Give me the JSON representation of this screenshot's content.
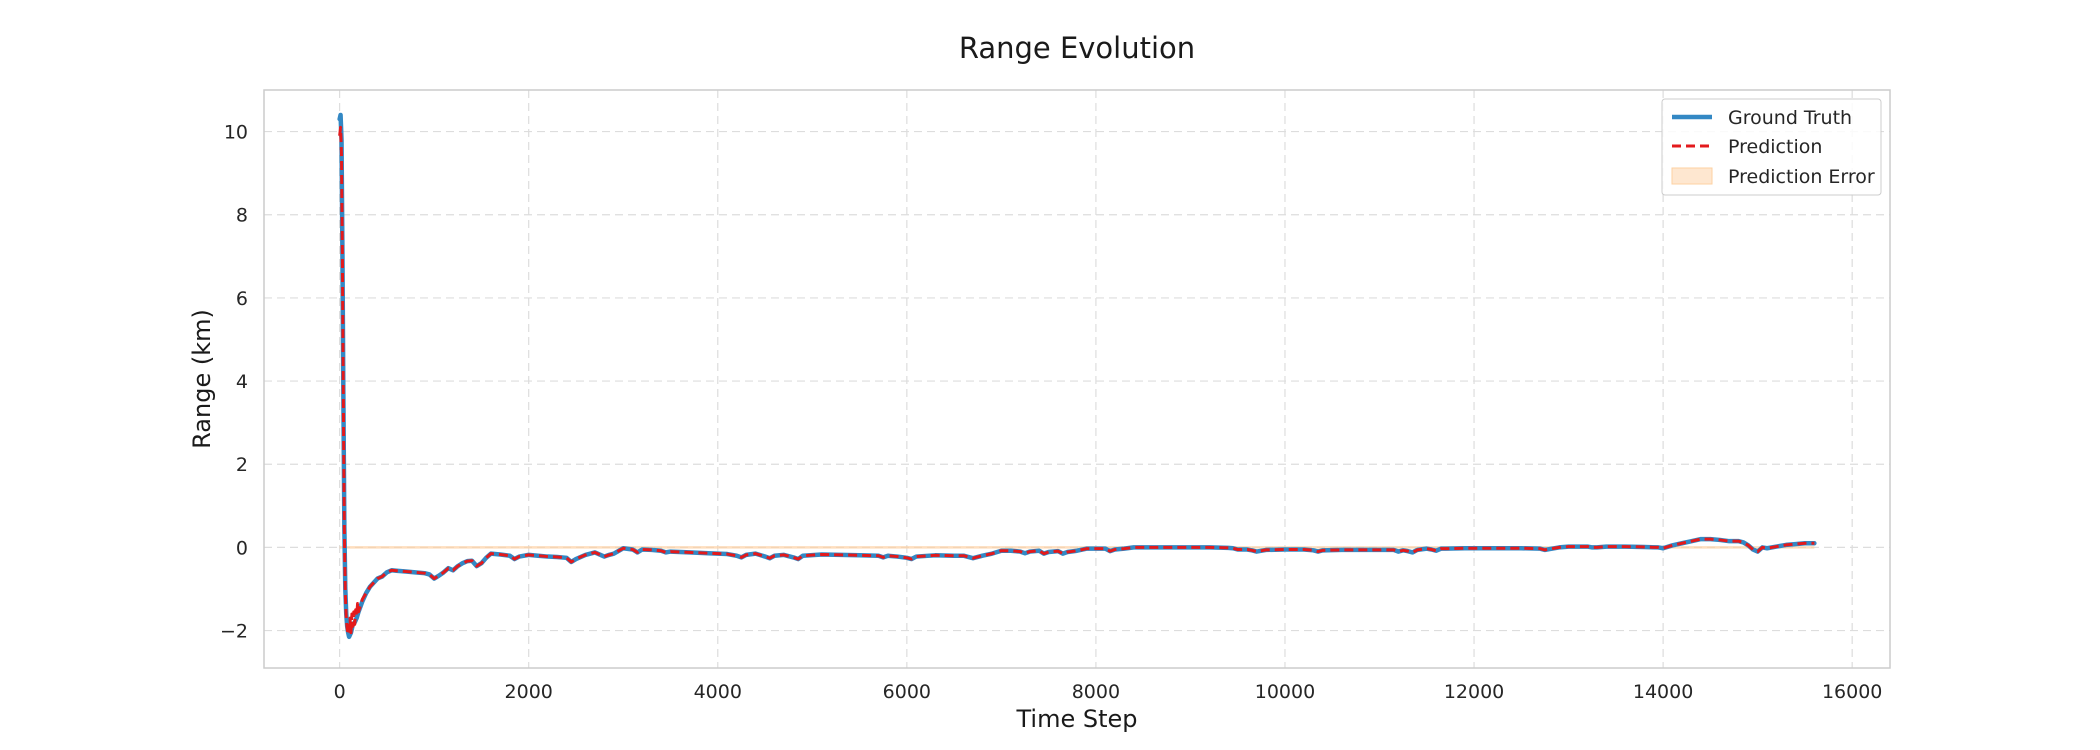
{
  "chart_data": {
    "type": "line",
    "title": "Range Evolution",
    "xlabel": "Time Step",
    "ylabel": "Range (km)",
    "xlim": [
      -800,
      16400
    ],
    "ylim": [
      -2.9,
      11.0
    ],
    "xticks": [
      0,
      2000,
      4000,
      6000,
      8000,
      10000,
      12000,
      14000,
      16000
    ],
    "xtick_labels": [
      "0",
      "2000",
      "4000",
      "6000",
      "8000",
      "10000",
      "12000",
      "14000",
      "16000"
    ],
    "yticks": [
      -2,
      0,
      2,
      4,
      6,
      8,
      10
    ],
    "ytick_labels": [
      "−2",
      "0",
      "2",
      "4",
      "6",
      "8",
      "10"
    ],
    "grid": true,
    "legend_position": "top-right",
    "series": [
      {
        "name": "Ground Truth",
        "style": "solid",
        "color": "#3388c4",
        "x": [
          0,
          10,
          20,
          30,
          40,
          50,
          60,
          70,
          80,
          90,
          100,
          120,
          140,
          160,
          180,
          200,
          240,
          280,
          320,
          360,
          400,
          450,
          500,
          550,
          600,
          700,
          800,
          900,
          950,
          1000,
          1050,
          1100,
          1150,
          1200,
          1250,
          1300,
          1350,
          1400,
          1450,
          1500,
          1550,
          1600,
          1700,
          1800,
          1850,
          1900,
          2000,
          2100,
          2200,
          2300,
          2400,
          2450,
          2500,
          2600,
          2700,
          2800,
          2850,
          2900,
          3000,
          3100,
          3150,
          3200,
          3300,
          3400,
          3450,
          3500,
          3700,
          3900,
          4100,
          4200,
          4250,
          4300,
          4400,
          4500,
          4550,
          4600,
          4700,
          4800,
          4850,
          4900,
          5100,
          5300,
          5500,
          5700,
          5750,
          5800,
          5900,
          6000,
          6050,
          6100,
          6300,
          6500,
          6600,
          6650,
          6700,
          6800,
          6900,
          7000,
          7100,
          7200,
          7250,
          7300,
          7400,
          7450,
          7500,
          7600,
          7650,
          7700,
          7800,
          7900,
          8000,
          8100,
          8150,
          8200,
          8300,
          8400,
          8600,
          8800,
          9000,
          9200,
          9400,
          9450,
          9500,
          9600,
          9650,
          9700,
          9800,
          10000,
          10200,
          10300,
          10350,
          10400,
          10600,
          10800,
          11000,
          11150,
          11200,
          11250,
          11300,
          11350,
          11400,
          11500,
          11550,
          11600,
          11650,
          11700,
          11900,
          12100,
          12300,
          12500,
          12700,
          12750,
          12800,
          12900,
          13000,
          13100,
          13200,
          13250,
          13300,
          13400,
          13600,
          13800,
          13950,
          14000,
          14100,
          14200,
          14300,
          14400,
          14500,
          14600,
          14700,
          14800,
          14850,
          14900,
          14950,
          15000,
          15050,
          15100,
          15200,
          15300,
          15400,
          15500,
          15600
        ],
        "y": [
          10.3,
          10.4,
          9.8,
          7.0,
          3.5,
          0.5,
          -1.0,
          -1.6,
          -1.9,
          -2.05,
          -2.15,
          -2.05,
          -1.85,
          -1.8,
          -1.7,
          -1.55,
          -1.3,
          -1.1,
          -0.95,
          -0.85,
          -0.75,
          -0.7,
          -0.6,
          -0.55,
          -0.56,
          -0.58,
          -0.6,
          -0.62,
          -0.65,
          -0.75,
          -0.68,
          -0.6,
          -0.5,
          -0.55,
          -0.45,
          -0.38,
          -0.33,
          -0.32,
          -0.45,
          -0.38,
          -0.25,
          -0.15,
          -0.17,
          -0.2,
          -0.28,
          -0.22,
          -0.18,
          -0.2,
          -0.22,
          -0.23,
          -0.25,
          -0.35,
          -0.28,
          -0.18,
          -0.12,
          -0.22,
          -0.18,
          -0.15,
          -0.02,
          -0.05,
          -0.12,
          -0.05,
          -0.06,
          -0.08,
          -0.12,
          -0.1,
          -0.12,
          -0.14,
          -0.16,
          -0.2,
          -0.24,
          -0.18,
          -0.15,
          -0.22,
          -0.26,
          -0.2,
          -0.18,
          -0.24,
          -0.28,
          -0.2,
          -0.17,
          -0.18,
          -0.19,
          -0.2,
          -0.24,
          -0.2,
          -0.22,
          -0.25,
          -0.28,
          -0.22,
          -0.19,
          -0.2,
          -0.2,
          -0.23,
          -0.26,
          -0.2,
          -0.15,
          -0.08,
          -0.08,
          -0.1,
          -0.14,
          -0.1,
          -0.08,
          -0.15,
          -0.11,
          -0.09,
          -0.15,
          -0.11,
          -0.08,
          -0.03,
          -0.03,
          -0.03,
          -0.09,
          -0.05,
          -0.03,
          0.0,
          0.0,
          0.0,
          0.0,
          0.0,
          -0.01,
          -0.02,
          -0.05,
          -0.05,
          -0.07,
          -0.1,
          -0.06,
          -0.05,
          -0.05,
          -0.07,
          -0.1,
          -0.07,
          -0.06,
          -0.06,
          -0.06,
          -0.06,
          -0.1,
          -0.07,
          -0.09,
          -0.12,
          -0.06,
          -0.03,
          -0.05,
          -0.08,
          -0.03,
          -0.03,
          -0.02,
          -0.02,
          -0.02,
          -0.02,
          -0.03,
          -0.06,
          -0.04,
          0.0,
          0.02,
          0.02,
          0.02,
          0.0,
          0.0,
          0.02,
          0.02,
          0.01,
          0.0,
          -0.02,
          0.05,
          0.1,
          0.15,
          0.2,
          0.2,
          0.18,
          0.15,
          0.15,
          0.12,
          0.05,
          -0.05,
          -0.1,
          0.0,
          -0.02,
          0.02,
          0.06,
          0.08,
          0.1,
          0.1
        ]
      },
      {
        "name": "Prediction",
        "style": "dashed",
        "color": "#e31a1c",
        "x": [
          0,
          10,
          20,
          30,
          40,
          50,
          60,
          70,
          80,
          90,
          100,
          110,
          120,
          130,
          140,
          150,
          160,
          170,
          180,
          190,
          200,
          240,
          280,
          320,
          360,
          400,
          450,
          500,
          550,
          600,
          700,
          800,
          900,
          950,
          1000,
          1050,
          1100,
          1150,
          1200,
          1250,
          1300,
          1350,
          1400,
          1450,
          1500,
          1550,
          1600,
          1700,
          1800,
          1850,
          1900,
          2000,
          2100,
          2200,
          2300,
          2400,
          2450,
          2500,
          2600,
          2700,
          2800,
          2850,
          2900,
          3000,
          3100,
          3150,
          3200,
          3300,
          3400,
          3450,
          3500,
          3700,
          3900,
          4100,
          4200,
          4250,
          4300,
          4400,
          4500,
          4550,
          4600,
          4700,
          4800,
          4850,
          4900,
          5100,
          5300,
          5500,
          5700,
          5750,
          5800,
          5900,
          6000,
          6050,
          6100,
          6300,
          6500,
          6600,
          6650,
          6700,
          6800,
          6900,
          7000,
          7100,
          7200,
          7250,
          7300,
          7400,
          7450,
          7500,
          7600,
          7650,
          7700,
          7800,
          7900,
          8000,
          8100,
          8150,
          8200,
          8300,
          8400,
          8600,
          8800,
          9000,
          9200,
          9400,
          9450,
          9500,
          9600,
          9650,
          9700,
          9800,
          10000,
          10200,
          10300,
          10350,
          10400,
          10600,
          10800,
          11000,
          11150,
          11200,
          11250,
          11300,
          11350,
          11400,
          11500,
          11550,
          11600,
          11650,
          11700,
          11900,
          12100,
          12300,
          12500,
          12700,
          12750,
          12800,
          12900,
          13000,
          13100,
          13200,
          13250,
          13300,
          13400,
          13600,
          13800,
          13950,
          14000,
          14100,
          14200,
          14300,
          14400,
          14500,
          14600,
          14700,
          14800,
          14850,
          14900,
          14950,
          15000,
          15050,
          15100,
          15200,
          15300,
          15400,
          15500,
          15600
        ],
        "y": [
          9.9,
          10.1,
          9.4,
          6.8,
          3.3,
          0.4,
          -1.1,
          -1.7,
          -1.95,
          -2.1,
          -2.0,
          -1.7,
          -2.05,
          -1.6,
          -1.9,
          -1.55,
          -1.85,
          -1.5,
          -1.65,
          -1.35,
          -1.55,
          -1.25,
          -1.1,
          -0.95,
          -0.85,
          -0.75,
          -0.7,
          -0.6,
          -0.55,
          -0.56,
          -0.58,
          -0.6,
          -0.62,
          -0.65,
          -0.75,
          -0.68,
          -0.6,
          -0.5,
          -0.55,
          -0.45,
          -0.38,
          -0.33,
          -0.32,
          -0.45,
          -0.38,
          -0.25,
          -0.15,
          -0.17,
          -0.2,
          -0.28,
          -0.22,
          -0.18,
          -0.2,
          -0.22,
          -0.23,
          -0.25,
          -0.35,
          -0.28,
          -0.18,
          -0.12,
          -0.22,
          -0.18,
          -0.15,
          -0.02,
          -0.05,
          -0.12,
          -0.05,
          -0.06,
          -0.08,
          -0.12,
          -0.1,
          -0.12,
          -0.14,
          -0.16,
          -0.2,
          -0.24,
          -0.18,
          -0.15,
          -0.22,
          -0.26,
          -0.2,
          -0.18,
          -0.24,
          -0.28,
          -0.2,
          -0.17,
          -0.18,
          -0.19,
          -0.2,
          -0.24,
          -0.2,
          -0.22,
          -0.25,
          -0.28,
          -0.22,
          -0.19,
          -0.2,
          -0.2,
          -0.23,
          -0.26,
          -0.2,
          -0.15,
          -0.08,
          -0.08,
          -0.1,
          -0.14,
          -0.1,
          -0.08,
          -0.15,
          -0.11,
          -0.09,
          -0.15,
          -0.11,
          -0.08,
          -0.03,
          -0.03,
          -0.03,
          -0.09,
          -0.05,
          -0.03,
          0.0,
          0.0,
          0.0,
          0.0,
          0.0,
          -0.01,
          -0.02,
          -0.05,
          -0.05,
          -0.07,
          -0.1,
          -0.06,
          -0.05,
          -0.05,
          -0.07,
          -0.1,
          -0.07,
          -0.06,
          -0.06,
          -0.06,
          -0.06,
          -0.1,
          -0.07,
          -0.09,
          -0.12,
          -0.06,
          -0.03,
          -0.05,
          -0.08,
          -0.03,
          -0.03,
          -0.02,
          -0.02,
          -0.02,
          -0.02,
          -0.03,
          -0.06,
          -0.04,
          0.0,
          0.02,
          0.02,
          0.02,
          0.0,
          0.0,
          0.02,
          0.02,
          0.01,
          0.0,
          -0.02,
          0.05,
          0.1,
          0.15,
          0.2,
          0.2,
          0.18,
          0.15,
          0.15,
          0.12,
          0.05,
          -0.05,
          -0.1,
          0.0,
          -0.02,
          0.02,
          0.06,
          0.08,
          0.1,
          0.1
        ]
      },
      {
        "name": "Prediction Error",
        "style": "fill",
        "color": "#fdd0a2",
        "x": [
          0,
          15600
        ],
        "y": [
          0,
          0
        ]
      }
    ]
  }
}
